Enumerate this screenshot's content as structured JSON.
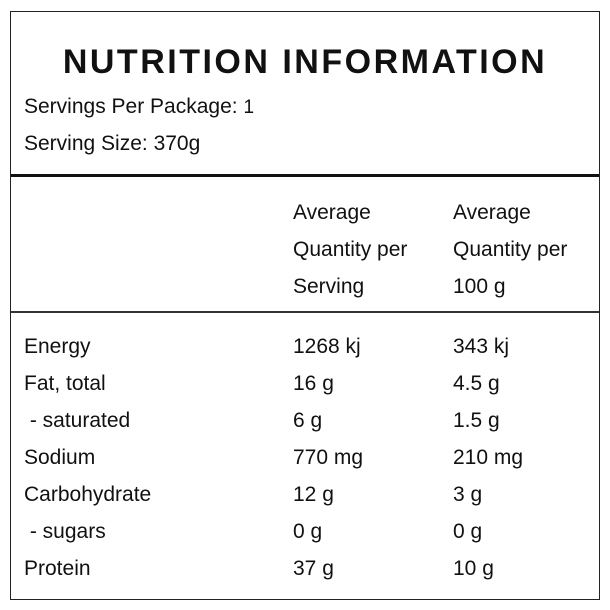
{
  "title": "NUTRITION INFORMATION",
  "servings_per_package": {
    "label": "Servings Per Package: ",
    "value": "1"
  },
  "serving_size": {
    "label": "Serving Size: ",
    "value": "370g"
  },
  "columns": {
    "per_serving": [
      "Average",
      "Quantity per",
      "Serving"
    ],
    "per_100g": [
      "Average",
      "Quantity per",
      "100 g"
    ]
  },
  "rows": [
    {
      "name": "Energy",
      "per_serving": "1268 kj",
      "per_100g": "343 kj"
    },
    {
      "name": "Fat, total",
      "per_serving": "16 g",
      "per_100g": "4.5 g"
    },
    {
      "name": " - saturated",
      "per_serving": "6 g",
      "per_100g": "1.5 g"
    },
    {
      "name": "Sodium",
      "per_serving": "770 mg",
      "per_100g": "210 mg"
    },
    {
      "name": "Carbohydrate",
      "per_serving": "12 g",
      "per_100g": "3 g"
    },
    {
      "name": " - sugars",
      "per_serving": "0 g",
      "per_100g": "0 g"
    },
    {
      "name": "Protein",
      "per_serving": "37 g",
      "per_100g": "10 g"
    }
  ]
}
